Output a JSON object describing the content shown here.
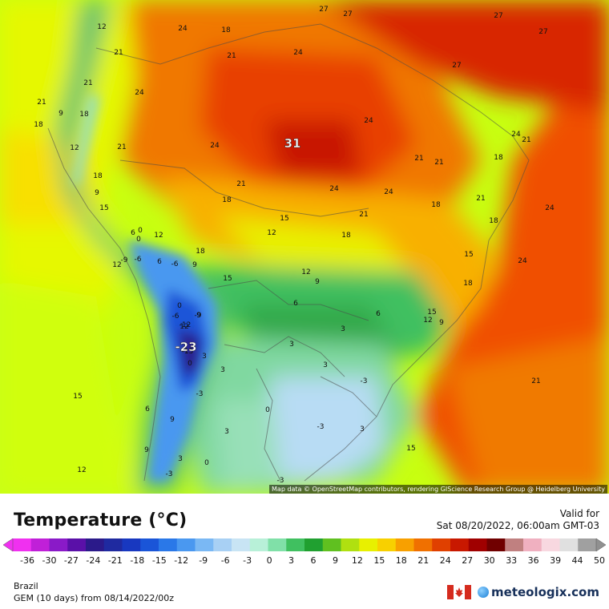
{
  "header": {
    "title": "Temperature (°C)",
    "valid_label": "Valid for",
    "valid_time": "Sat 08/20/2022, 06:00am GMT-03"
  },
  "map": {
    "attribution": "Map data © OpenStreetMap contributors, rendering GIScience Research Group @ Heidelberg University",
    "labels": [
      "27",
      "27",
      "27",
      "27",
      "27",
      "24",
      "24",
      "24",
      "24",
      "24",
      "24",
      "24",
      "24",
      "24",
      "24",
      "21",
      "21",
      "21",
      "21",
      "21",
      "21",
      "21",
      "21",
      "21",
      "21",
      "21",
      "21",
      "18",
      "18",
      "18",
      "18",
      "18",
      "18",
      "18",
      "18",
      "18",
      "18",
      "18",
      "15",
      "15",
      "15",
      "15",
      "15",
      "15",
      "15",
      "12",
      "12",
      "12",
      "12",
      "12",
      "12",
      "12",
      "12",
      "12",
      "9",
      "9",
      "9",
      "9",
      "9",
      "9",
      "9",
      "9",
      "6",
      "6",
      "6",
      "6",
      "6",
      "3",
      "3",
      "3",
      "3",
      "3",
      "3",
      "3",
      "3",
      "0",
      "0",
      "0",
      "0",
      "0",
      "0",
      "-3",
      "-3",
      "-3",
      "-3",
      "-3",
      "-6",
      "-6",
      "-6",
      "-9",
      "-9",
      "-12",
      "-15",
      "31",
      "-23"
    ]
  },
  "legend": {
    "ticks": [
      "-36",
      "-30",
      "-27",
      "-24",
      "-21",
      "-18",
      "-15",
      "-12",
      "-9",
      "-6",
      "-3",
      "0",
      "3",
      "6",
      "9",
      "12",
      "15",
      "18",
      "21",
      "24",
      "27",
      "30",
      "33",
      "36",
      "39",
      "44",
      "50"
    ],
    "colors": [
      "#f030f0",
      "#c020d8",
      "#8a1ac8",
      "#5a10a8",
      "#2b1a8a",
      "#1f2aa0",
      "#1838c0",
      "#1a55d8",
      "#2a78e8",
      "#4a98f0",
      "#7ab8f4",
      "#a8d0f4",
      "#c8e4f4",
      "#b8f0d8",
      "#80e0a8",
      "#40c060",
      "#20a030",
      "#60c020",
      "#b0e010",
      "#e8f000",
      "#f8d000",
      "#f8a000",
      "#f07000",
      "#e04000",
      "#c81800",
      "#a00000",
      "#700000",
      "#c08080",
      "#f0b0c0",
      "#f8d8e0",
      "#e0e0e0",
      "#a0a0a0"
    ]
  },
  "footer": {
    "region": "Brazil",
    "model": "GEM (10 days) from 08/14/2022/00z",
    "brand": "meteologix.com"
  }
}
